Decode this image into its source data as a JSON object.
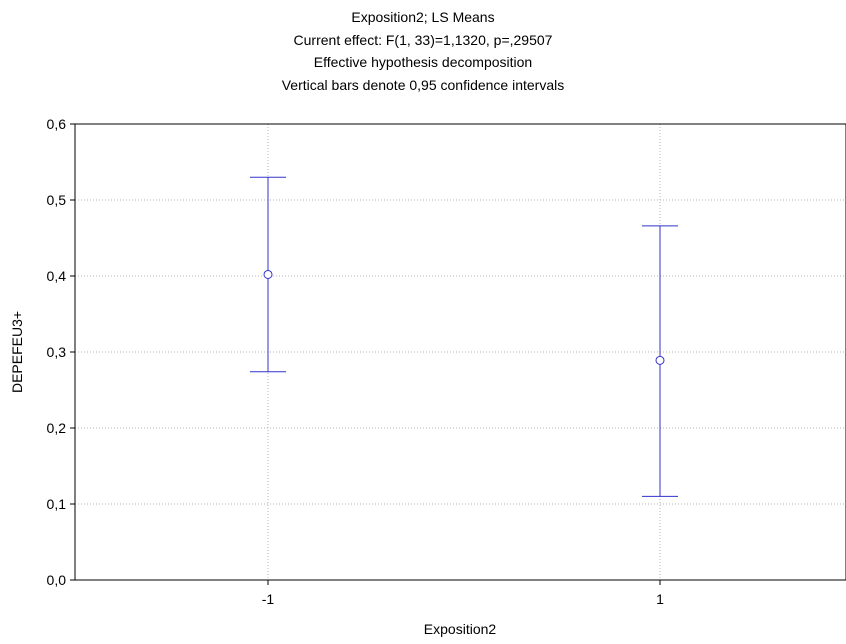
{
  "chart_data": {
    "type": "scatter",
    "title_lines": [
      "Exposition2; LS Means",
      "Current effect: F(1, 33)=1,1320, p=,29507",
      "Effective hypothesis decomposition",
      "Vertical bars denote 0,95 confidence intervals"
    ],
    "xlabel": "Exposition2",
    "ylabel": "DEPEFEU3+",
    "categories": [
      "-1",
      "1"
    ],
    "series": [
      {
        "points": [
          {
            "x": "-1",
            "mean": 0.402,
            "ci_low": 0.274,
            "ci_high": 0.53
          },
          {
            "x": "1",
            "mean": 0.289,
            "ci_low": 0.11,
            "ci_high": 0.466
          }
        ]
      }
    ],
    "ylim": [
      0.0,
      0.6
    ],
    "yticks": [
      "0,0",
      "0,1",
      "0,2",
      "0,3",
      "0,4",
      "0,5",
      "0,6"
    ],
    "grid": true,
    "colors": {
      "series": "#3333cc",
      "grid": "#b3b3b3",
      "axis": "#000000"
    }
  }
}
